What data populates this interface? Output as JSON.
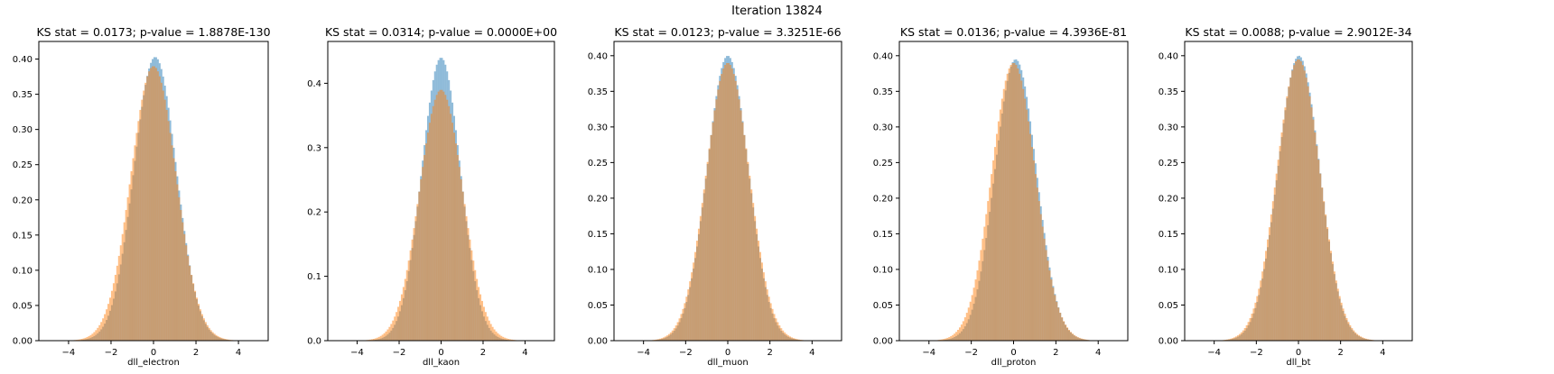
{
  "figure": {
    "suptitle": "Iteration 13824"
  },
  "colors": {
    "series_a": "#1f77b4",
    "series_b": "#ff7f0e",
    "overlap": "#c49a74",
    "axis": "#000000"
  },
  "chart_data": [
    {
      "type": "histogram",
      "title": "KS stat = 0.0173; p-value = 1.8878E-130",
      "xlabel": "dll_electron",
      "ylabel": "",
      "xlim": [
        -5.4,
        5.4
      ],
      "ylim": [
        0,
        0.425
      ],
      "xticks": [
        -4,
        -2,
        0,
        2,
        4
      ],
      "yticks": [
        0.0,
        0.05,
        0.1,
        0.15,
        0.2,
        0.25,
        0.3,
        0.35,
        0.4
      ],
      "ytick_labels": [
        "0.00",
        "0.05",
        "0.10",
        "0.15",
        "0.20",
        "0.25",
        "0.30",
        "0.35",
        "0.40"
      ],
      "bin_range": [
        -5,
        5
      ],
      "series": [
        {
          "color": "series_a",
          "mean": 0.08,
          "std": 1.0,
          "peak": 0.403
        },
        {
          "color": "series_b",
          "mean": 0.0,
          "std": 1.06,
          "peak": 0.39
        }
      ]
    },
    {
      "type": "histogram",
      "title": "KS stat = 0.0314; p-value = 0.0000E+00",
      "xlabel": "dll_kaon",
      "ylabel": "",
      "xlim": [
        -5.4,
        5.4
      ],
      "ylim": [
        0,
        0.465
      ],
      "xticks": [
        -4,
        -2,
        0,
        2,
        4
      ],
      "yticks": [
        0.0,
        0.1,
        0.2,
        0.3,
        0.4
      ],
      "ytick_labels": [
        "0.0",
        "0.1",
        "0.2",
        "0.3",
        "0.4"
      ],
      "bin_range": [
        -5,
        5
      ],
      "series": [
        {
          "color": "series_a",
          "mean": 0.0,
          "std": 0.92,
          "peak": 0.44
        },
        {
          "color": "series_b",
          "mean": 0.0,
          "std": 1.02,
          "peak": 0.39
        }
      ]
    },
    {
      "type": "histogram",
      "title": "KS stat = 0.0123; p-value = 3.3251E-66",
      "xlabel": "dll_muon",
      "ylabel": "",
      "xlim": [
        -5.4,
        5.4
      ],
      "ylim": [
        0,
        0.42
      ],
      "xticks": [
        -4,
        -2,
        0,
        2,
        4
      ],
      "yticks": [
        0.0,
        0.05,
        0.1,
        0.15,
        0.2,
        0.25,
        0.3,
        0.35,
        0.4
      ],
      "ytick_labels": [
        "0.00",
        "0.05",
        "0.10",
        "0.15",
        "0.20",
        "0.25",
        "0.30",
        "0.35",
        "0.40"
      ],
      "bin_range": [
        -5,
        5
      ],
      "series": [
        {
          "color": "series_a",
          "mean": 0.0,
          "std": 0.98,
          "peak": 0.4
        },
        {
          "color": "series_b",
          "mean": 0.0,
          "std": 1.02,
          "peak": 0.39
        }
      ]
    },
    {
      "type": "histogram",
      "title": "KS stat = 0.0136; p-value = 4.3936E-81",
      "xlabel": "dll_proton",
      "ylabel": "",
      "xlim": [
        -5.4,
        5.4
      ],
      "ylim": [
        0,
        0.42
      ],
      "xticks": [
        -4,
        -2,
        0,
        2,
        4
      ],
      "yticks": [
        0.0,
        0.05,
        0.1,
        0.15,
        0.2,
        0.25,
        0.3,
        0.35,
        0.4
      ],
      "ytick_labels": [
        "0.00",
        "0.05",
        "0.10",
        "0.15",
        "0.20",
        "0.25",
        "0.30",
        "0.35",
        "0.40"
      ],
      "bin_range": [
        -5,
        5
      ],
      "series": [
        {
          "color": "series_a",
          "mean": 0.1,
          "std": 0.98,
          "peak": 0.395
        },
        {
          "color": "series_b",
          "mean": 0.0,
          "std": 1.03,
          "peak": 0.39
        }
      ]
    },
    {
      "type": "histogram",
      "title": "KS stat = 0.0088; p-value = 2.9012E-34",
      "xlabel": "dll_bt",
      "ylabel": "",
      "xlim": [
        -5.4,
        5.4
      ],
      "ylim": [
        0,
        0.42
      ],
      "xticks": [
        -4,
        -2,
        0,
        2,
        4
      ],
      "yticks": [
        0.0,
        0.05,
        0.1,
        0.15,
        0.2,
        0.25,
        0.3,
        0.35,
        0.4
      ],
      "ytick_labels": [
        "0.00",
        "0.05",
        "0.10",
        "0.15",
        "0.20",
        "0.25",
        "0.30",
        "0.35",
        "0.40"
      ],
      "bin_range": [
        -5,
        5
      ],
      "series": [
        {
          "color": "series_a",
          "mean": 0.02,
          "std": 0.99,
          "peak": 0.4
        },
        {
          "color": "series_b",
          "mean": 0.0,
          "std": 1.02,
          "peak": 0.395
        }
      ]
    }
  ]
}
